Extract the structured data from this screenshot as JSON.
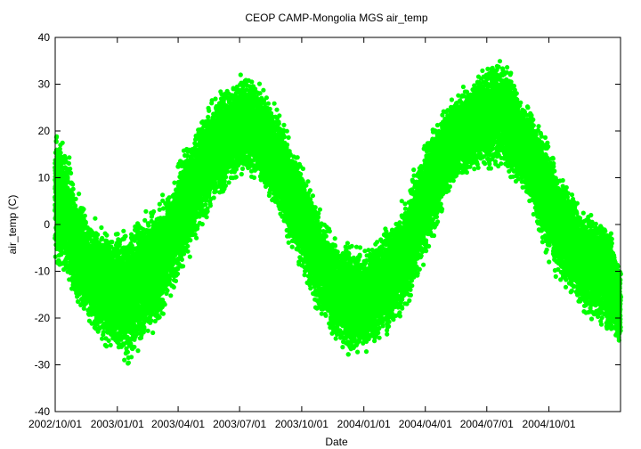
{
  "chart_data": {
    "type": "scatter",
    "title": "CEOP CAMP-Mongolia MGS  air_temp",
    "xlabel": "Date",
    "ylabel": "air_temp (C)",
    "ylim": [
      -40,
      40
    ],
    "xlim": [
      "2002-10-01",
      "2005-01-15"
    ],
    "y_ticks": [
      -40,
      -30,
      -20,
      -10,
      0,
      10,
      20,
      30,
      40
    ],
    "x_ticks": [
      "2002/10/01",
      "2003/01/01",
      "2003/04/01",
      "2003/07/01",
      "2003/10/01",
      "2004/01/01",
      "2004/04/01",
      "2004/07/01",
      "2004/10/01"
    ],
    "grid": false,
    "marker_color": "#00ff00",
    "series": [
      {
        "x": [
          "2002-10-01",
          "2002-10-15",
          "2002-11-01",
          "2002-11-15",
          "2002-12-01",
          "2002-12-15",
          "2003-01-01",
          "2003-01-15",
          "2003-02-01",
          "2003-02-15",
          "2003-03-01",
          "2003-03-15",
          "2003-04-01",
          "2003-04-15",
          "2003-05-01",
          "2003-05-15",
          "2003-06-01",
          "2003-06-15",
          "2003-07-01",
          "2003-07-15",
          "2003-08-01",
          "2003-08-15",
          "2003-09-01",
          "2003-09-15",
          "2003-10-01",
          "2003-10-15",
          "2003-11-01",
          "2003-11-15",
          "2003-12-01",
          "2003-12-15",
          "2004-01-01",
          "2004-01-15",
          "2004-02-01",
          "2004-02-15",
          "2004-03-01",
          "2004-03-15",
          "2004-04-01",
          "2004-04-15",
          "2004-05-01",
          "2004-05-15",
          "2004-06-01",
          "2004-06-15",
          "2004-07-01",
          "2004-07-15",
          "2004-08-01",
          "2004-08-15",
          "2004-09-01",
          "2004-09-15",
          "2004-10-01",
          "2004-10-15",
          "2004-11-01",
          "2004-11-15",
          "2004-12-01",
          "2004-12-15",
          "2005-01-01",
          "2005-01-15"
        ],
        "y_min": [
          -8,
          -12,
          -18,
          -20,
          -24,
          -26,
          -28,
          -30,
          -27,
          -25,
          -22,
          -18,
          -12,
          -8,
          -2,
          2,
          6,
          8,
          10,
          10,
          8,
          5,
          0,
          -5,
          -10,
          -16,
          -20,
          -24,
          -27,
          -29,
          -28,
          -26,
          -24,
          -22,
          -20,
          -14,
          -8,
          -2,
          4,
          8,
          10,
          12,
          12,
          12,
          10,
          8,
          5,
          -2,
          -8,
          -12,
          -15,
          -18,
          -20,
          -22,
          -24,
          -26
        ],
        "y_max": [
          20,
          18,
          8,
          4,
          2,
          0,
          0,
          0,
          2,
          3,
          4,
          8,
          14,
          18,
          22,
          26,
          28,
          30,
          32,
          32,
          30,
          28,
          24,
          18,
          14,
          8,
          2,
          -2,
          -4,
          -4,
          -5,
          -4,
          0,
          2,
          6,
          12,
          18,
          22,
          26,
          28,
          30,
          32,
          34,
          36,
          34,
          30,
          26,
          22,
          18,
          12,
          8,
          4,
          2,
          2,
          0,
          -10
        ],
        "y_center": [
          6,
          4,
          -5,
          -8,
          -12,
          -14,
          -14,
          -16,
          -13,
          -11,
          -9,
          -5,
          1,
          5,
          10,
          14,
          17,
          19,
          21,
          21,
          19,
          16,
          12,
          6,
          2,
          -4,
          -9,
          -13,
          -15,
          -16,
          -16,
          -15,
          -12,
          -10,
          -7,
          -1,
          5,
          10,
          15,
          18,
          20,
          22,
          23,
          24,
          22,
          19,
          15,
          10,
          5,
          0,
          -3,
          -7,
          -9,
          -10,
          -12,
          -18
        ]
      }
    ]
  }
}
